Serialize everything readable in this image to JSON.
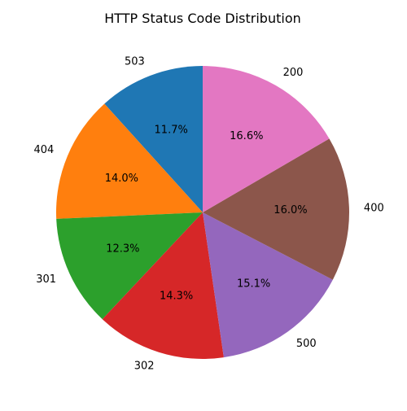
{
  "chart_data": {
    "type": "pie",
    "title": "HTTP Status Code Distribution",
    "start_angle_deg": 90,
    "direction": "counterclockwise",
    "slices": [
      {
        "label": "503",
        "value": 11.7,
        "pct_text": "11.7%",
        "color": "#1f77b4"
      },
      {
        "label": "404",
        "value": 14.0,
        "pct_text": "14.0%",
        "color": "#ff7f0e"
      },
      {
        "label": "301",
        "value": 12.3,
        "pct_text": "12.3%",
        "color": "#2ca02c"
      },
      {
        "label": "302",
        "value": 14.3,
        "pct_text": "14.3%",
        "color": "#d62728"
      },
      {
        "label": "500",
        "value": 15.1,
        "pct_text": "15.1%",
        "color": "#9467bd"
      },
      {
        "label": "400",
        "value": 16.0,
        "pct_text": "16.0%",
        "color": "#8c564b"
      },
      {
        "label": "200",
        "value": 16.6,
        "pct_text": "16.6%",
        "color": "#e377c2"
      }
    ]
  }
}
